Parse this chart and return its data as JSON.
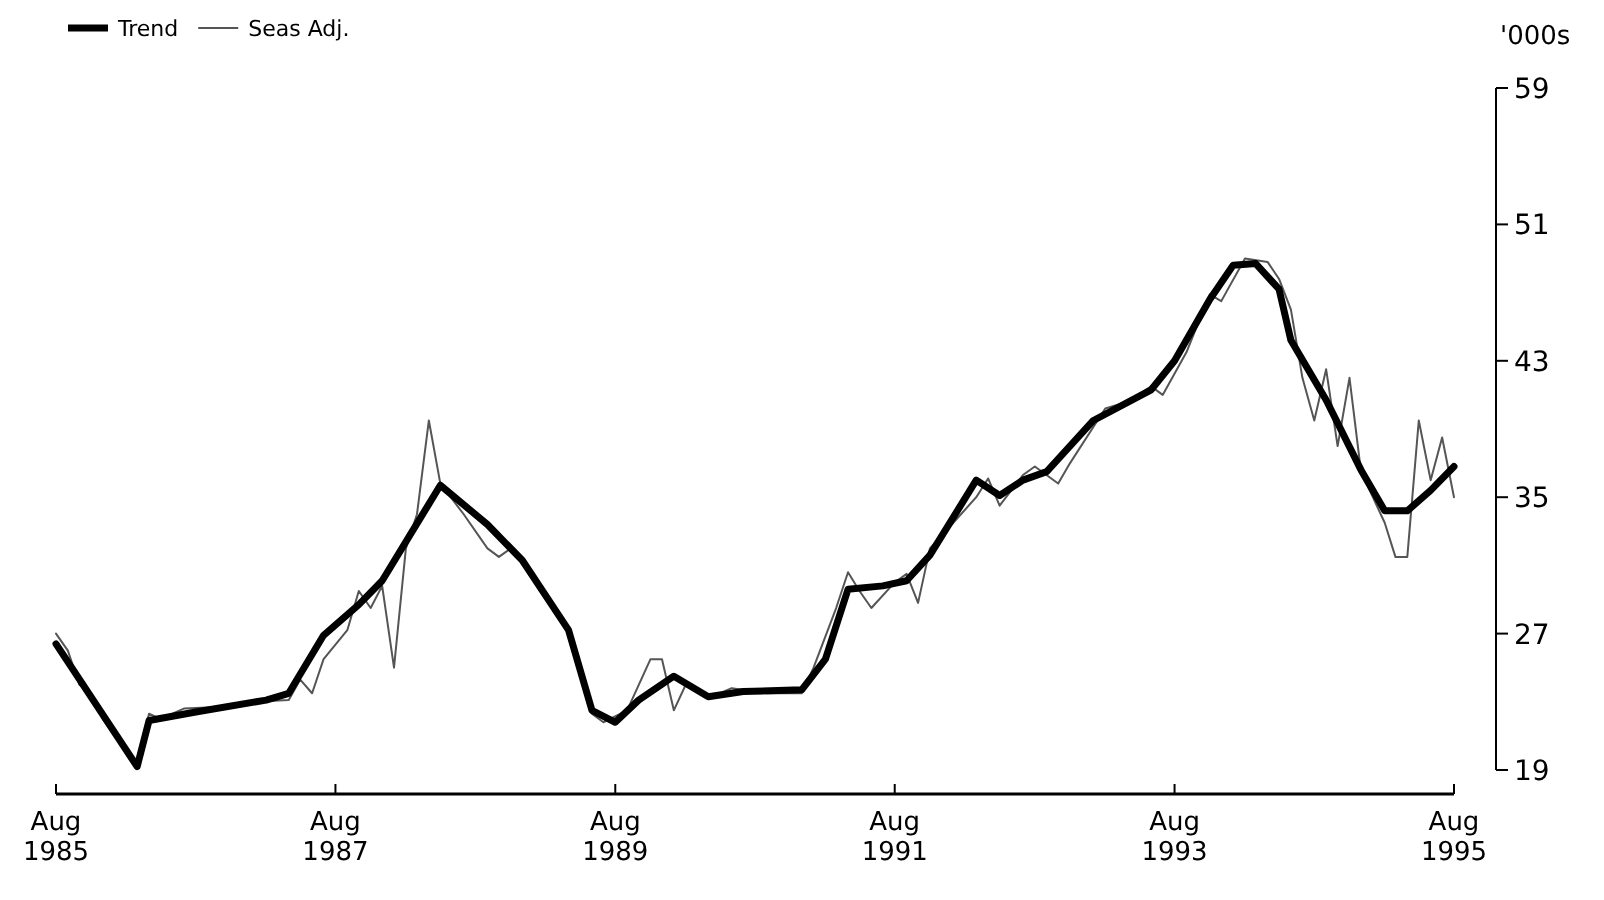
{
  "chart_data": {
    "type": "line",
    "ylabel": "'000s",
    "legend": "top left",
    "ylim": [
      19,
      59
    ],
    "yticks": [
      19,
      27,
      35,
      43,
      51,
      59
    ],
    "xlim": [
      "1985-08",
      "1995-08"
    ],
    "xticks": [
      {
        "value": "1985-08",
        "label": "Aug 1985"
      },
      {
        "value": "1987-08",
        "label": "Aug 1987"
      },
      {
        "value": "1989-08",
        "label": "Aug 1989"
      },
      {
        "value": "1991-08",
        "label": "Aug 1991"
      },
      {
        "value": "1993-08",
        "label": "Aug 1993"
      },
      {
        "value": "1995-08",
        "label": "Aug 1995"
      }
    ],
    "series": [
      {
        "name": "Trend",
        "color": "#000000",
        "x": [
          "1985-08",
          "1986-03",
          "1986-04",
          "1986-08",
          "1987-02",
          "1987-04",
          "1987-07",
          "1987-10",
          "1987-12",
          "1988-05",
          "1988-09",
          "1988-12",
          "1989-04",
          "1989-06",
          "1989-08",
          "1989-10",
          "1990-01",
          "1990-04",
          "1990-07",
          "1990-12",
          "1991-02",
          "1991-04",
          "1991-07",
          "1991-09",
          "1991-11",
          "1992-03",
          "1992-05",
          "1992-07",
          "1992-09",
          "1993-01",
          "1993-06",
          "1993-08",
          "1993-11",
          "1994-01",
          "1994-03",
          "1994-05",
          "1994-06",
          "1994-09",
          "1994-12",
          "1995-02",
          "1995-04",
          "1995-06",
          "1995-08"
        ],
        "values": [
          26.4,
          19.2,
          21.9,
          22.4,
          23.1,
          23.5,
          26.9,
          28.7,
          30.1,
          35.7,
          33.4,
          31.3,
          27.2,
          22.5,
          21.8,
          23.1,
          24.5,
          23.3,
          23.6,
          23.7,
          25.5,
          29.6,
          29.8,
          30.1,
          31.6,
          36.0,
          35.1,
          36.0,
          36.5,
          39.5,
          41.3,
          43.0,
          46.6,
          48.6,
          48.7,
          47.2,
          44.2,
          40.7,
          36.6,
          34.2,
          34.2,
          35.4,
          36.8
        ]
      },
      {
        "name": "Seas Adj.",
        "color": "#555555",
        "x": [
          "1985-08",
          "1985-09",
          "1985-10",
          "1985-11",
          "1985-12",
          "1986-01",
          "1986-02",
          "1986-03",
          "1986-04",
          "1986-05",
          "1986-07",
          "1986-10",
          "1987-01",
          "1987-04",
          "1987-05",
          "1987-06",
          "1987-07",
          "1987-09",
          "1987-10",
          "1987-11",
          "1987-12",
          "1988-01",
          "1988-02",
          "1988-03",
          "1988-04",
          "1988-05",
          "1988-07",
          "1988-09",
          "1988-10",
          "1988-11",
          "1989-01",
          "1989-04",
          "1989-06",
          "1989-07",
          "1989-09",
          "1989-11",
          "1989-12",
          "1990-01",
          "1990-02",
          "1990-04",
          "1990-06",
          "1990-09",
          "1990-12",
          "1991-01",
          "1991-03",
          "1991-04",
          "1991-05",
          "1991-06",
          "1991-08",
          "1991-09",
          "1991-10",
          "1991-11",
          "1992-01",
          "1992-03",
          "1992-04",
          "1992-05",
          "1992-07",
          "1992-08",
          "1992-10",
          "1992-11",
          "1993-02",
          "1993-04",
          "1993-06",
          "1993-07",
          "1993-09",
          "1993-11",
          "1993-12",
          "1994-02",
          "1994-04",
          "1994-05",
          "1994-06",
          "1994-07",
          "1994-08",
          "1994-09",
          "1994-10",
          "1994-11",
          "1994-12",
          "1995-01",
          "1995-02",
          "1995-03",
          "1995-04",
          "1995-05",
          "1995-06",
          "1995-07",
          "1995-08"
        ],
        "values": [
          27.0,
          26.0,
          24.0,
          23.5,
          22.0,
          21.0,
          20.0,
          19.5,
          22.3,
          22.0,
          22.6,
          22.7,
          23.0,
          23.1,
          24.3,
          23.5,
          25.5,
          27.2,
          29.5,
          28.5,
          29.8,
          25.0,
          32.0,
          34.0,
          39.5,
          35.8,
          34.0,
          32.0,
          31.5,
          32.0,
          30.5,
          27.0,
          22.3,
          21.8,
          22.5,
          25.5,
          25.5,
          22.5,
          24.0,
          23.2,
          23.8,
          23.5,
          23.5,
          25.0,
          28.5,
          30.6,
          29.5,
          28.5,
          30.0,
          30.5,
          28.8,
          32.0,
          33.5,
          35.0,
          36.1,
          34.5,
          36.3,
          36.8,
          35.8,
          37.0,
          40.2,
          40.6,
          41.5,
          41.0,
          43.5,
          46.9,
          46.5,
          49.0,
          48.8,
          47.8,
          46.0,
          42.0,
          39.5,
          42.5,
          38.0,
          42.0,
          36.5,
          35.0,
          33.5,
          31.5,
          31.5,
          39.5,
          36.0,
          38.5,
          35.0
        ]
      }
    ]
  }
}
